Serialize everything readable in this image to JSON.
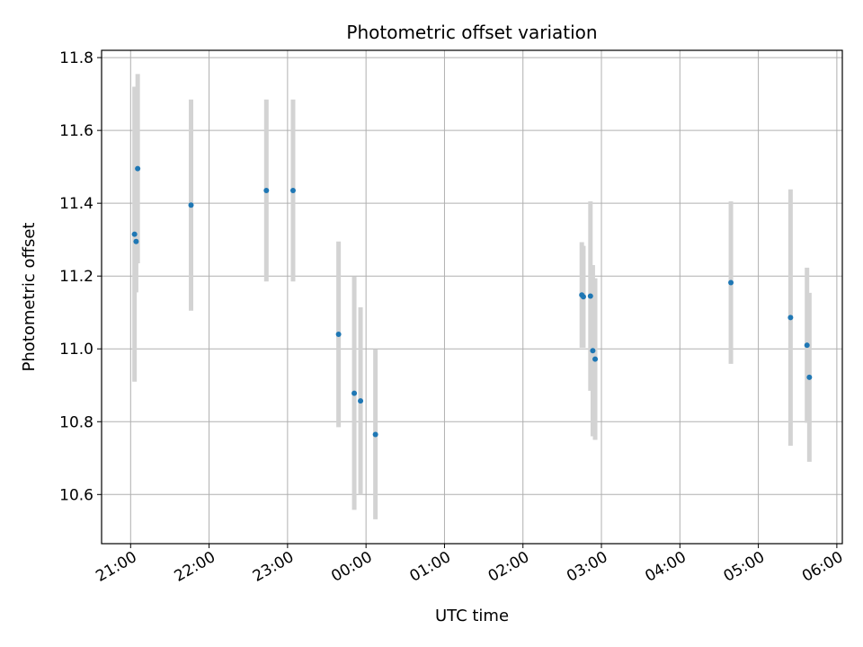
{
  "chart_data": {
    "type": "scatter",
    "title": "Photometric offset variation",
    "xlabel": "UTC time",
    "ylabel": "Photometric offset",
    "x_unit": "hours",
    "xlim": [
      20.63,
      30.07
    ],
    "ylim": [
      10.465,
      11.82
    ],
    "xticks": [
      21,
      22,
      23,
      24,
      25,
      26,
      27,
      28,
      29,
      30
    ],
    "xtick_labels": [
      "21:00",
      "22:00",
      "23:00",
      "00:00",
      "01:00",
      "02:00",
      "03:00",
      "04:00",
      "05:00",
      "06:00"
    ],
    "yticks": [
      10.6,
      10.8,
      11.0,
      11.2,
      11.4,
      11.6,
      11.8
    ],
    "ytick_labels": [
      "10.6",
      "10.8",
      "11.0",
      "11.2",
      "11.4",
      "11.6",
      "11.8"
    ],
    "grid": true,
    "colors": {
      "point": "#1f77b4",
      "errorbar": "#d3d3d3",
      "grid": "#b0b0b0"
    },
    "series": [
      {
        "points": [
          {
            "x": 21.05,
            "y": 11.315,
            "yerr": 0.405
          },
          {
            "x": 21.07,
            "y": 11.295,
            "yerr": 0.14
          },
          {
            "x": 21.09,
            "y": 11.495,
            "yerr": 0.26
          },
          {
            "x": 21.77,
            "y": 11.395,
            "yerr": 0.29
          },
          {
            "x": 22.73,
            "y": 11.435,
            "yerr": 0.25
          },
          {
            "x": 23.07,
            "y": 11.435,
            "yerr": 0.25
          },
          {
            "x": 23.65,
            "y": 11.04,
            "yerr": 0.255
          },
          {
            "x": 23.85,
            "y": 10.878,
            "yerr": 0.32
          },
          {
            "x": 23.93,
            "y": 10.857,
            "yerr": 0.257
          },
          {
            "x": 24.12,
            "y": 10.765,
            "yerr": 0.233
          },
          {
            "x": 26.75,
            "y": 11.148,
            "yerr": 0.145
          },
          {
            "x": 26.77,
            "y": 11.143,
            "yerr": 0.14
          },
          {
            "x": 26.86,
            "y": 11.145,
            "yerr": 0.26
          },
          {
            "x": 26.89,
            "y": 10.995,
            "yerr": 0.235
          },
          {
            "x": 26.92,
            "y": 10.972,
            "yerr": 0.222
          },
          {
            "x": 28.65,
            "y": 11.182,
            "yerr": 0.223
          },
          {
            "x": 29.41,
            "y": 11.086,
            "yerr": 0.352
          },
          {
            "x": 29.62,
            "y": 11.01,
            "yerr": 0.213
          },
          {
            "x": 29.65,
            "y": 10.922,
            "yerr": 0.232
          }
        ]
      }
    ]
  }
}
